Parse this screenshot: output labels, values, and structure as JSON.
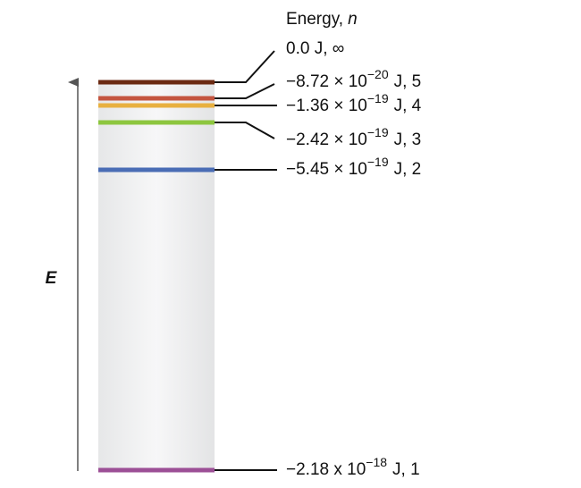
{
  "header": {
    "text": "Energy,",
    "variable": "n"
  },
  "axis_label": "E",
  "levels": [
    {
      "text": "0.0 J, ∞"
    },
    {
      "mantissa": "−8.72 × 10",
      "exponent": "−20",
      "suffix": "J, 5"
    },
    {
      "mantissa": "−1.36 × 10",
      "exponent": "−19",
      "suffix": "J, 4"
    },
    {
      "mantissa": "−2.42 × 10",
      "exponent": "−19",
      "suffix": "J, 3"
    },
    {
      "mantissa": "−5.45 × 10",
      "exponent": "−19",
      "suffix": "J, 2"
    },
    {
      "mantissa": "−2.18 x 10",
      "exponent": "−18",
      "suffix": "J, 1"
    }
  ]
}
